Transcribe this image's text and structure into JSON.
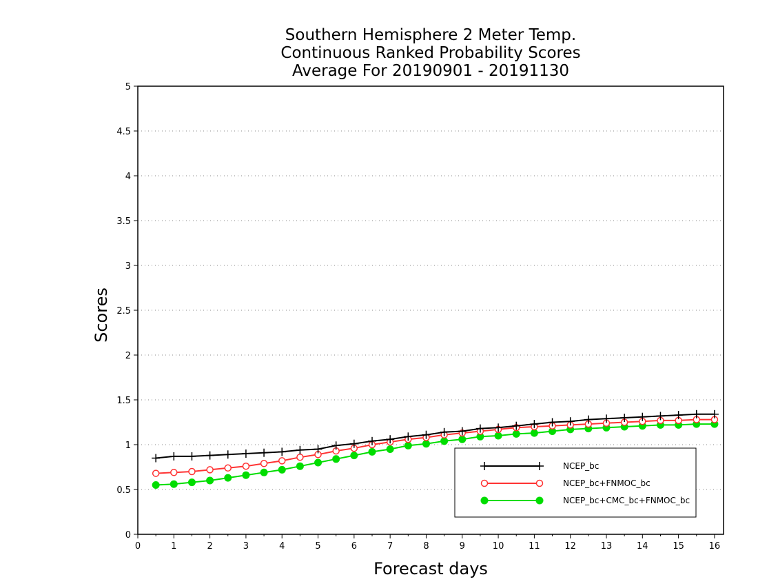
{
  "chart_data": {
    "type": "line",
    "title_lines": [
      "Southern Hemisphere 2 Meter Temp.",
      "Continuous Ranked Probability Scores",
      "Average For 20190901 - 20191130"
    ],
    "xlabel": "Forecast days",
    "ylabel": "Scores",
    "xlim": [
      0,
      16.25
    ],
    "ylim": [
      0,
      5
    ],
    "x_ticks": [
      "0",
      "1",
      "2",
      "3",
      "4",
      "5",
      "6",
      "7",
      "8",
      "9",
      "10",
      "11",
      "12",
      "13",
      "14",
      "15",
      "16"
    ],
    "y_ticks": [
      "0",
      "0.5",
      "1",
      "1.5",
      "2",
      "2.5",
      "3",
      "3.5",
      "4",
      "4.5",
      "5"
    ],
    "grid": "horizontal dotted",
    "legend_position": "lower-right",
    "x": [
      0.5,
      1,
      1.5,
      2,
      2.5,
      3,
      3.5,
      4,
      4.5,
      5,
      5.5,
      6,
      6.5,
      7,
      7.5,
      8,
      8.5,
      9,
      9.5,
      10,
      10.5,
      11,
      11.5,
      12,
      12.5,
      13,
      13.5,
      14,
      14.5,
      15,
      15.5,
      16
    ],
    "series": [
      {
        "name": "NCEP_bc",
        "color": "#000000",
        "marker": "plus",
        "values": [
          0.85,
          0.87,
          0.87,
          0.88,
          0.89,
          0.9,
          0.91,
          0.92,
          0.94,
          0.95,
          0.99,
          1.01,
          1.04,
          1.06,
          1.09,
          1.11,
          1.14,
          1.15,
          1.18,
          1.19,
          1.21,
          1.23,
          1.25,
          1.26,
          1.28,
          1.29,
          1.3,
          1.31,
          1.32,
          1.33,
          1.34,
          1.34
        ]
      },
      {
        "name": "NCEP_bc+FNMOC_bc",
        "color": "#ff3333",
        "marker": "open-circle",
        "values": [
          0.68,
          0.69,
          0.7,
          0.72,
          0.74,
          0.76,
          0.79,
          0.82,
          0.86,
          0.89,
          0.93,
          0.96,
          1.0,
          1.03,
          1.06,
          1.08,
          1.11,
          1.13,
          1.15,
          1.17,
          1.19,
          1.2,
          1.21,
          1.22,
          1.23,
          1.24,
          1.25,
          1.26,
          1.27,
          1.27,
          1.28,
          1.28
        ]
      },
      {
        "name": "NCEP_bc+CMC_bc+FNMOC_bc",
        "color": "#00dd00",
        "marker": "filled-circle",
        "values": [
          0.55,
          0.56,
          0.58,
          0.6,
          0.63,
          0.66,
          0.69,
          0.72,
          0.76,
          0.8,
          0.84,
          0.88,
          0.92,
          0.95,
          0.99,
          1.01,
          1.04,
          1.06,
          1.09,
          1.1,
          1.12,
          1.13,
          1.15,
          1.17,
          1.18,
          1.19,
          1.2,
          1.21,
          1.22,
          1.22,
          1.23,
          1.23
        ]
      }
    ]
  }
}
